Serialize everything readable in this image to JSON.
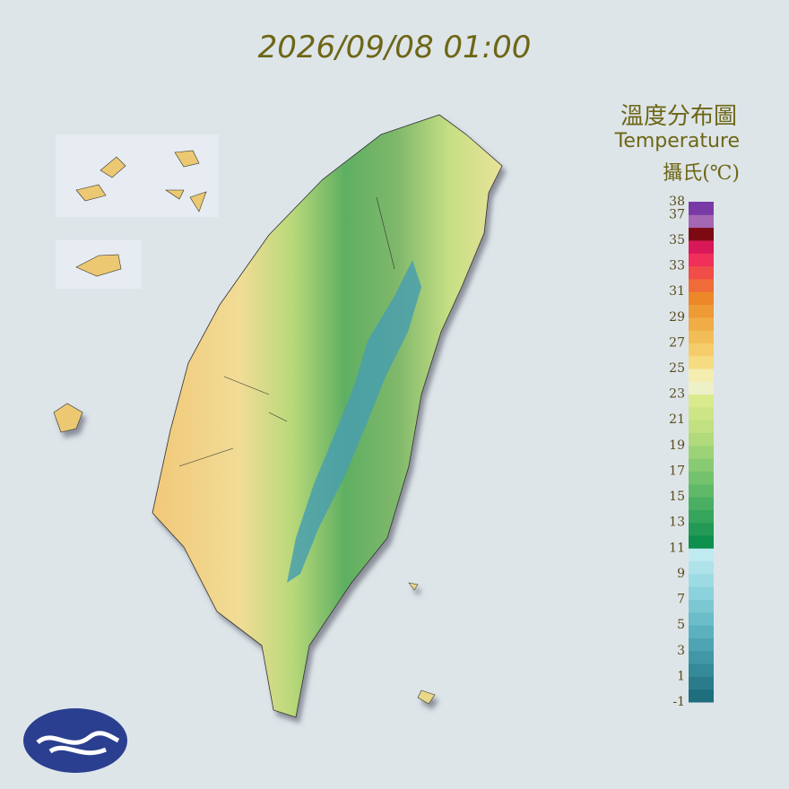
{
  "timestamp": "2026/09/08 01:00",
  "legend": {
    "title": "溫度分布圖",
    "subtitle": "Temperature",
    "unit": "攝氏(℃)",
    "ticks": [
      38,
      37,
      35,
      33,
      31,
      29,
      27,
      25,
      23,
      21,
      19,
      17,
      15,
      13,
      11,
      9,
      7,
      5,
      3,
      1,
      -1
    ],
    "colors": [
      "#1f6e7e",
      "#2a7c8c",
      "#358a99",
      "#4197a6",
      "#4ea4b2",
      "#5cb1be",
      "#6bbdc9",
      "#7bc8d3",
      "#8cd2dc",
      "#9ddbe4",
      "#aee3ea",
      "#bfeaf0",
      "#0f8f4e",
      "#229a55",
      "#36a55c",
      "#4aaf62",
      "#5fb968",
      "#74c26d",
      "#89cb72",
      "#9dd377",
      "#b0da7c",
      "#c0e081",
      "#cde586",
      "#d9ea8c",
      "#eef0c8",
      "#f3edb0",
      "#f5dc80",
      "#f4cd6a",
      "#f2bd56",
      "#f0ac45",
      "#ee9a35",
      "#ec8828",
      "#f06a3a",
      "#f04c48",
      "#f0305a",
      "#d81858",
      "#7d0a12",
      "#a566b4",
      "#7a3aa6"
    ]
  }
}
